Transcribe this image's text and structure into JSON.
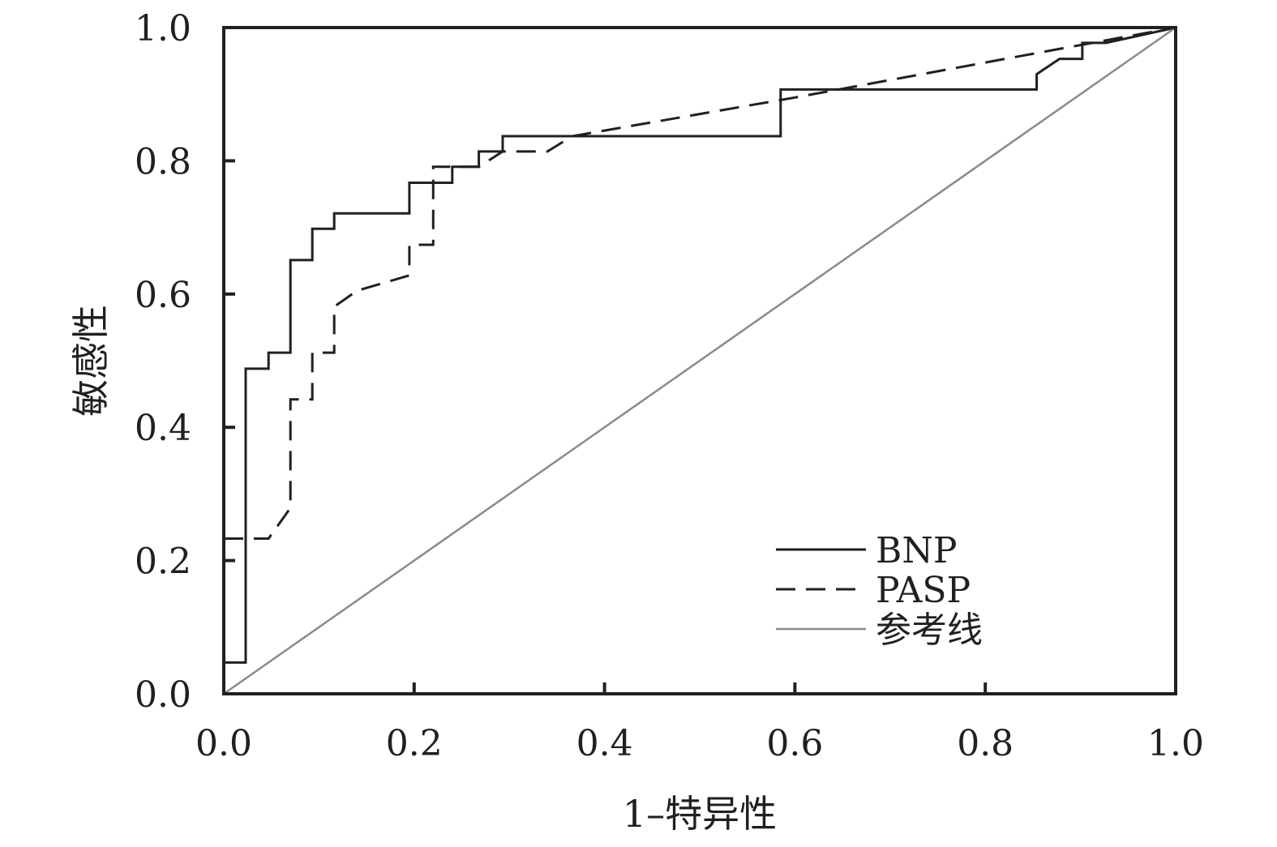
{
  "chart_data": {
    "type": "line",
    "title": "",
    "xlabel": "1–特异性",
    "ylabel": "敏感性",
    "xlim": [
      0,
      1
    ],
    "ylim": [
      0,
      1
    ],
    "grid": false,
    "legend_position": "bottom-right",
    "x_ticks": [
      "0.0",
      "0.2",
      "0.4",
      "0.6",
      "0.8",
      "1.0"
    ],
    "y_ticks": [
      "0.0",
      "0.2",
      "0.4",
      "0.6",
      "0.8",
      "1.0"
    ],
    "series": [
      {
        "name": "BNP",
        "style": "solid",
        "color": "#231f20",
        "points": [
          [
            0,
            0.047
          ],
          [
            0.023,
            0.047
          ],
          [
            0.023,
            0.488
          ],
          [
            0.047,
            0.488
          ],
          [
            0.047,
            0.512
          ],
          [
            0.07,
            0.512
          ],
          [
            0.07,
            0.651
          ],
          [
            0.093,
            0.651
          ],
          [
            0.093,
            0.698
          ],
          [
            0.116,
            0.698
          ],
          [
            0.116,
            0.721
          ],
          [
            0.195,
            0.721
          ],
          [
            0.195,
            0.767
          ],
          [
            0.24,
            0.767
          ],
          [
            0.24,
            0.791
          ],
          [
            0.268,
            0.791
          ],
          [
            0.268,
            0.814
          ],
          [
            0.293,
            0.814
          ],
          [
            0.293,
            0.837
          ],
          [
            0.585,
            0.837
          ],
          [
            0.585,
            0.907
          ],
          [
            0.854,
            0.907
          ],
          [
            0.854,
            0.93
          ],
          [
            0.878,
            0.953
          ],
          [
            0.902,
            0.953
          ],
          [
            0.902,
            0.977
          ],
          [
            0.927,
            0.977
          ],
          [
            1,
            1
          ]
        ]
      },
      {
        "name": "PASP",
        "style": "dashed",
        "color": "#231f20",
        "points": [
          [
            0,
            0.233
          ],
          [
            0.047,
            0.233
          ],
          [
            0.07,
            0.279
          ],
          [
            0.07,
            0.442
          ],
          [
            0.093,
            0.442
          ],
          [
            0.093,
            0.512
          ],
          [
            0.116,
            0.512
          ],
          [
            0.116,
            0.581
          ],
          [
            0.14,
            0.605
          ],
          [
            0.195,
            0.628
          ],
          [
            0.195,
            0.674
          ],
          [
            0.22,
            0.674
          ],
          [
            0.22,
            0.791
          ],
          [
            0.268,
            0.791
          ],
          [
            0.293,
            0.814
          ],
          [
            0.34,
            0.814
          ],
          [
            0.366,
            0.837
          ],
          [
            0.6,
            0.895
          ],
          [
            1,
            1
          ]
        ]
      },
      {
        "name": "参考线",
        "style": "solid",
        "color": "#8a8a8a",
        "points": [
          [
            0,
            0
          ],
          [
            1,
            1
          ]
        ]
      }
    ]
  }
}
